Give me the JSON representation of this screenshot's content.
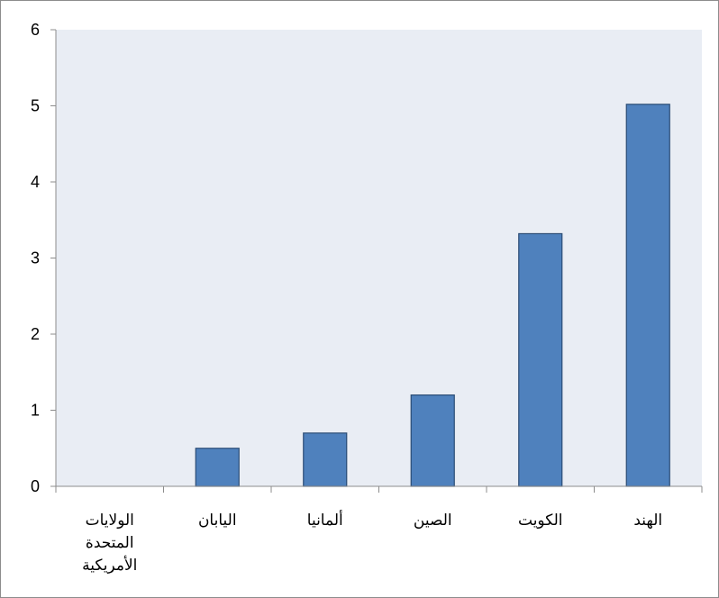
{
  "chart_data": {
    "type": "bar",
    "categories": [
      "الولايات المتحدة الأمريكية",
      "اليابان",
      "ألمانيا",
      "الصين",
      "الكويت",
      "الهند"
    ],
    "category_lines": [
      [
        "الولايات",
        "المتحدة",
        "الأمريكية"
      ],
      [
        "اليابان"
      ],
      [
        "ألمانيا"
      ],
      [
        "الصين"
      ],
      [
        "الكويت"
      ],
      [
        "الهند"
      ]
    ],
    "values": [
      0,
      0.5,
      0.7,
      1.2,
      3.32,
      5.02
    ],
    "ylim": [
      0,
      6
    ],
    "yticks": [
      "0",
      "1",
      "2",
      "3",
      "4",
      "5",
      "6"
    ],
    "title": "",
    "xlabel": "",
    "ylabel": "",
    "grid": false,
    "legend": "none",
    "colors": {
      "bar_fill": "#4f81bd",
      "bar_stroke": "#2c4d75",
      "plot_background": "#e9edf4",
      "axis": "#8c8c8c"
    }
  }
}
